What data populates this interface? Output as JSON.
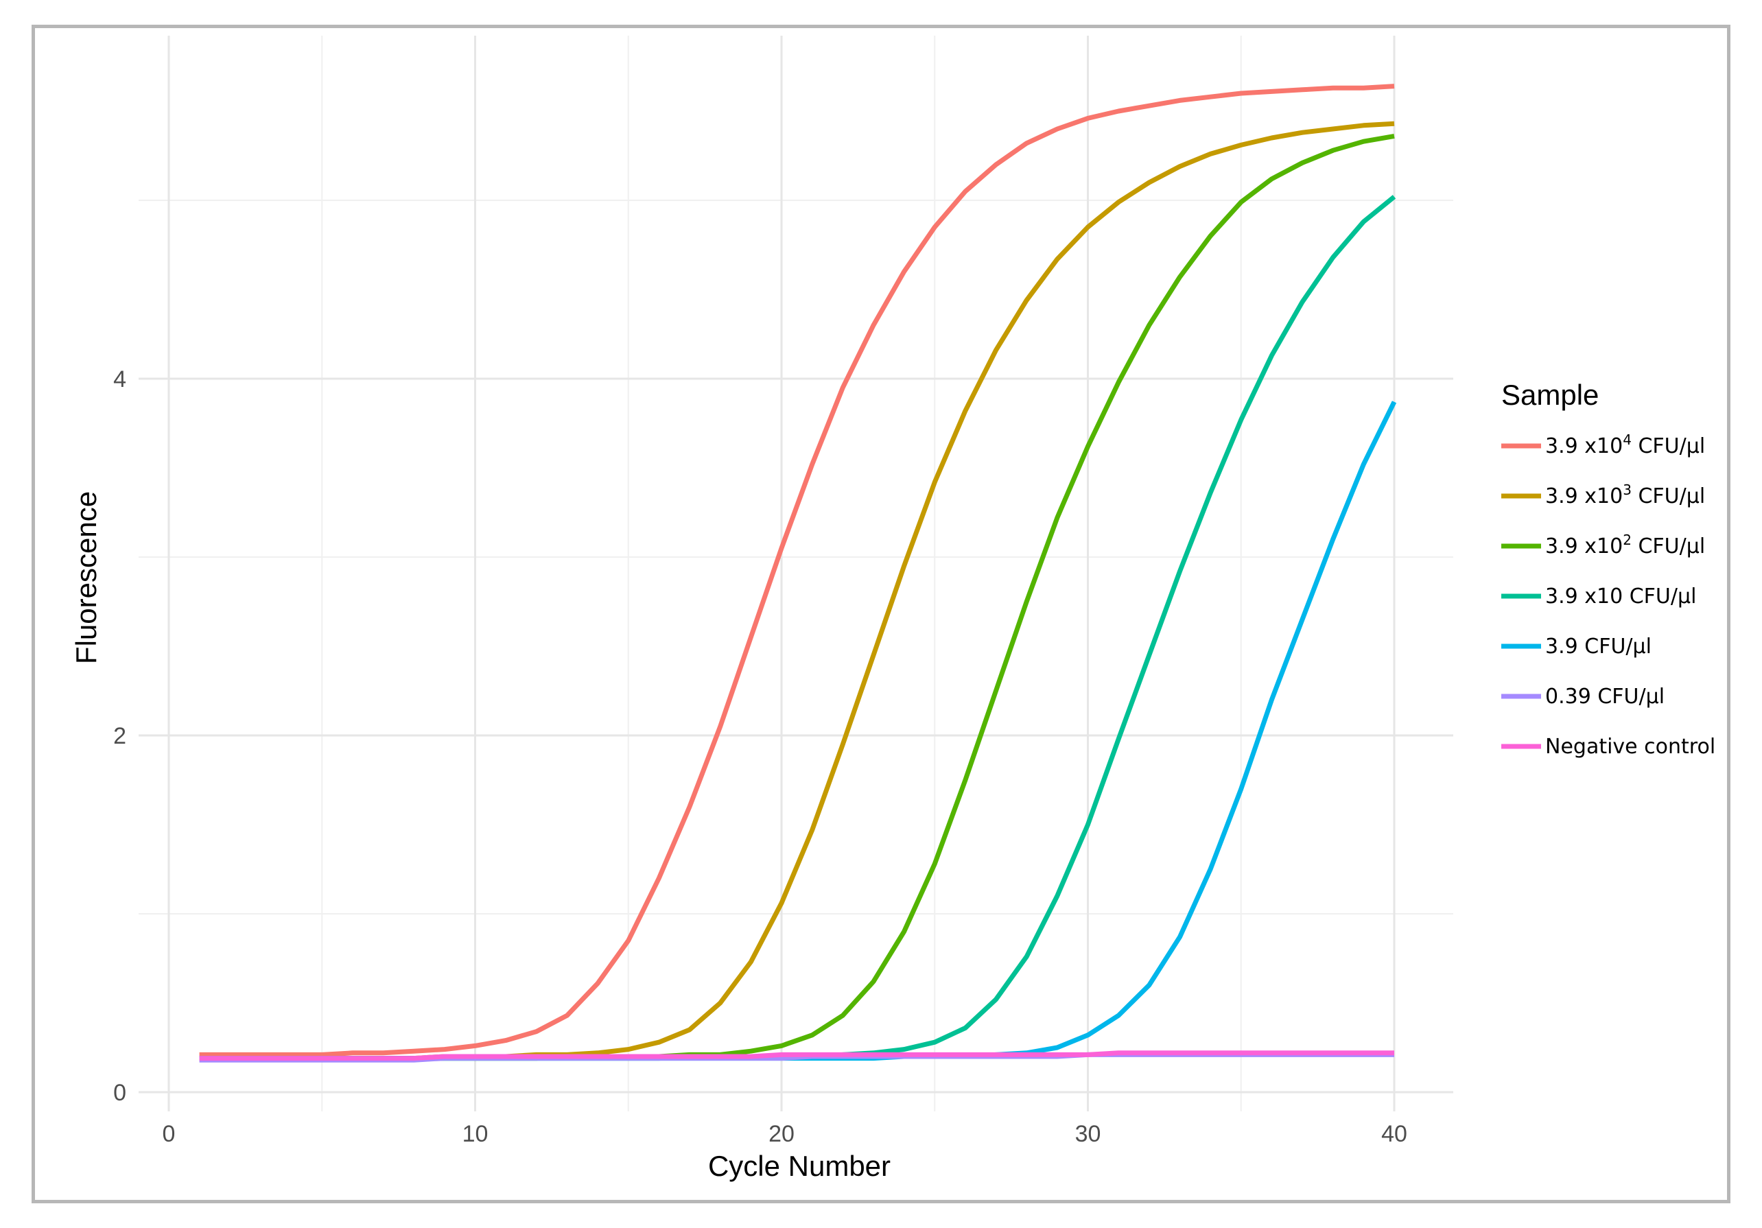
{
  "chart_data": {
    "type": "line",
    "title": "",
    "xlabel": "Cycle Number",
    "ylabel": "Fluorescence",
    "xlim": [
      0,
      41
    ],
    "ylim": [
      0,
      5.9
    ],
    "x_ticks": [
      0,
      10,
      20,
      30,
      40
    ],
    "y_ticks": [
      0,
      2,
      4
    ],
    "grid": true,
    "legend": {
      "title": "Sample",
      "position": "right"
    },
    "x": [
      1,
      2,
      3,
      4,
      5,
      6,
      7,
      8,
      9,
      10,
      11,
      12,
      13,
      14,
      15,
      16,
      17,
      18,
      19,
      20,
      21,
      22,
      23,
      24,
      25,
      26,
      27,
      28,
      29,
      30,
      31,
      32,
      33,
      34,
      35,
      36,
      37,
      38,
      39,
      40
    ],
    "series": [
      {
        "name": "3.9 x10^4 CFU/µl",
        "label_main": "3.9 x10",
        "label_sup": "4",
        "label_tail": " CFU/µl",
        "color": "#F8766D",
        "values": [
          0.21,
          0.21,
          0.21,
          0.21,
          0.21,
          0.22,
          0.22,
          0.23,
          0.24,
          0.26,
          0.29,
          0.34,
          0.43,
          0.61,
          0.85,
          1.2,
          1.6,
          2.05,
          2.55,
          3.05,
          3.52,
          3.95,
          4.3,
          4.6,
          4.85,
          5.05,
          5.2,
          5.32,
          5.4,
          5.46,
          5.5,
          5.53,
          5.56,
          5.58,
          5.6,
          5.61,
          5.62,
          5.63,
          5.63,
          5.64
        ]
      },
      {
        "name": "3.9 x10^3 CFU/µl",
        "label_main": "3.9 x10",
        "label_sup": "3",
        "label_tail": " CFU/µl",
        "color": "#C49A00",
        "values": [
          0.19,
          0.19,
          0.19,
          0.19,
          0.19,
          0.19,
          0.19,
          0.19,
          0.2,
          0.2,
          0.2,
          0.21,
          0.21,
          0.22,
          0.24,
          0.28,
          0.35,
          0.5,
          0.73,
          1.06,
          1.47,
          1.95,
          2.45,
          2.95,
          3.42,
          3.82,
          4.16,
          4.44,
          4.67,
          4.85,
          4.99,
          5.1,
          5.19,
          5.26,
          5.31,
          5.35,
          5.38,
          5.4,
          5.42,
          5.43
        ]
      },
      {
        "name": "3.9 x10^2 CFU/µl",
        "label_main": "3.9 x10",
        "label_sup": "2",
        "label_tail": " CFU/µl",
        "color": "#53B400",
        "values": [
          0.19,
          0.19,
          0.19,
          0.19,
          0.19,
          0.19,
          0.19,
          0.19,
          0.19,
          0.19,
          0.19,
          0.19,
          0.2,
          0.2,
          0.2,
          0.2,
          0.21,
          0.21,
          0.23,
          0.26,
          0.32,
          0.43,
          0.62,
          0.9,
          1.28,
          1.75,
          2.25,
          2.75,
          3.22,
          3.62,
          3.98,
          4.3,
          4.57,
          4.8,
          4.99,
          5.12,
          5.21,
          5.28,
          5.33,
          5.36
        ]
      },
      {
        "name": "3.9 x10 CFU/µl",
        "label_main": "3.9 x10 CFU/µl",
        "label_sup": "",
        "label_tail": "",
        "color": "#00C094",
        "values": [
          0.19,
          0.19,
          0.19,
          0.19,
          0.19,
          0.19,
          0.19,
          0.19,
          0.19,
          0.19,
          0.19,
          0.19,
          0.19,
          0.19,
          0.19,
          0.19,
          0.2,
          0.2,
          0.2,
          0.2,
          0.2,
          0.21,
          0.22,
          0.24,
          0.28,
          0.36,
          0.52,
          0.76,
          1.1,
          1.5,
          1.98,
          2.45,
          2.92,
          3.36,
          3.77,
          4.13,
          4.43,
          4.68,
          4.88,
          5.02
        ]
      },
      {
        "name": "3.9 CFU/µl",
        "label_main": "3.9 CFU/µl",
        "label_sup": "",
        "label_tail": "",
        "color": "#00B6EB",
        "values": [
          0.19,
          0.19,
          0.19,
          0.19,
          0.19,
          0.19,
          0.19,
          0.19,
          0.19,
          0.19,
          0.19,
          0.19,
          0.19,
          0.19,
          0.19,
          0.19,
          0.19,
          0.19,
          0.19,
          0.19,
          0.19,
          0.19,
          0.19,
          0.2,
          0.2,
          0.2,
          0.21,
          0.22,
          0.25,
          0.32,
          0.43,
          0.6,
          0.87,
          1.25,
          1.7,
          2.2,
          2.65,
          3.1,
          3.52,
          3.87
        ]
      },
      {
        "name": "0.39 CFU/µl",
        "label_main": "0.39 CFU/µl",
        "label_sup": "",
        "label_tail": "",
        "color": "#A58AFF",
        "values": [
          0.18,
          0.18,
          0.18,
          0.18,
          0.18,
          0.18,
          0.18,
          0.18,
          0.19,
          0.19,
          0.19,
          0.19,
          0.19,
          0.19,
          0.19,
          0.19,
          0.19,
          0.19,
          0.19,
          0.19,
          0.2,
          0.2,
          0.2,
          0.2,
          0.2,
          0.2,
          0.2,
          0.2,
          0.2,
          0.21,
          0.21,
          0.21,
          0.21,
          0.21,
          0.21,
          0.21,
          0.21,
          0.21,
          0.21,
          0.21
        ]
      },
      {
        "name": "Negative control",
        "label_main": "Negative control",
        "label_sup": "",
        "label_tail": "",
        "color": "#FB61D7",
        "values": [
          0.19,
          0.19,
          0.19,
          0.19,
          0.19,
          0.19,
          0.19,
          0.19,
          0.2,
          0.2,
          0.2,
          0.2,
          0.2,
          0.2,
          0.2,
          0.2,
          0.2,
          0.2,
          0.2,
          0.21,
          0.21,
          0.21,
          0.21,
          0.21,
          0.21,
          0.21,
          0.21,
          0.21,
          0.21,
          0.21,
          0.22,
          0.22,
          0.22,
          0.22,
          0.22,
          0.22,
          0.22,
          0.22,
          0.22,
          0.22
        ]
      }
    ]
  }
}
